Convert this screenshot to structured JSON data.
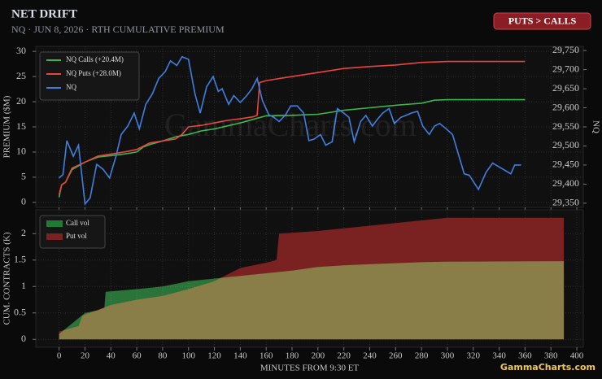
{
  "header": {
    "title": "NET DRIFT",
    "subtitle": "NQ · JUN 8, 2026 · RTH CUMULATIVE PREMIUM",
    "badge": "PUTS > CALLS"
  },
  "watermark": "GammaCharts.com",
  "logo": "GammaCharts.com",
  "chart_data": [
    {
      "type": "line",
      "ylabel": "PREMIUM ($M)",
      "y2label": "NQ",
      "legend": "upper left",
      "grid": true,
      "xlim": [
        -18,
        405
      ],
      "xticks": [
        0,
        20,
        40,
        60,
        80,
        100,
        120,
        140,
        160,
        180,
        200,
        220,
        240,
        260,
        280,
        300,
        320,
        340,
        360,
        380,
        400
      ],
      "ylim": [
        -1,
        31
      ],
      "yticks": [
        0,
        5,
        10,
        15,
        20,
        25,
        30
      ],
      "y2lim": [
        29339,
        29761
      ],
      "y2ticks": [
        {
          "value": 29350,
          "label": "29,350"
        },
        {
          "value": 29400,
          "label": "29,400"
        },
        {
          "value": 29450,
          "label": "29,450"
        },
        {
          "value": 29500,
          "label": "29,500"
        },
        {
          "value": 29550,
          "label": "29,550"
        },
        {
          "value": 29600,
          "label": "29,600"
        },
        {
          "value": 29650,
          "label": "29,650"
        },
        {
          "value": 29700,
          "label": "29,700"
        },
        {
          "value": 29750,
          "label": "29,750"
        }
      ],
      "series": [
        {
          "name": "NQ Calls (+20.4M)",
          "color": "#3cb54a",
          "x": [
            0,
            2,
            5,
            10,
            20,
            30,
            40,
            50,
            60,
            65,
            70,
            80,
            90,
            100,
            110,
            120,
            130,
            140,
            150,
            160,
            180,
            200,
            220,
            240,
            260,
            280,
            290,
            300,
            360
          ],
          "values": [
            1,
            3.5,
            4,
            6.5,
            8,
            9,
            9.3,
            9.6,
            10,
            11,
            11.5,
            12.2,
            13,
            13.5,
            14.2,
            14.6,
            15.2,
            15.8,
            16.5,
            17.2,
            17.3,
            17.5,
            18.3,
            18.8,
            19.3,
            19.7,
            20.3,
            20.4,
            20.4
          ]
        },
        {
          "name": "NQ Puts (+28.0M)",
          "color": "#e8453c",
          "x": [
            0,
            2,
            5,
            10,
            20,
            30,
            40,
            50,
            60,
            70,
            80,
            90,
            95,
            100,
            110,
            120,
            130,
            140,
            150,
            153,
            155,
            160,
            180,
            200,
            220,
            240,
            260,
            280,
            300,
            360
          ],
          "values": [
            1.5,
            3.5,
            4,
            6.8,
            8,
            9.2,
            9.6,
            10,
            10.5,
            11.8,
            12.2,
            12.6,
            13.5,
            15,
            15.3,
            15.8,
            16.3,
            16.6,
            17,
            17.3,
            23.8,
            24.2,
            25,
            25.8,
            26.6,
            27,
            27.3,
            27.8,
            28,
            28
          ]
        },
        {
          "name": "NQ",
          "color": "#3f7fe0",
          "axis": "y2",
          "x": [
            0,
            3,
            6,
            11,
            15,
            20,
            24,
            29,
            34,
            39,
            44,
            48,
            53,
            58,
            62,
            67,
            72,
            77,
            82,
            86,
            91,
            95,
            100,
            105,
            109,
            114,
            119,
            123,
            126,
            131,
            135,
            140,
            145,
            149,
            153,
            157,
            162,
            166,
            170,
            175,
            179,
            184,
            189,
            193,
            197,
            202,
            206,
            211,
            215,
            220,
            224,
            228,
            233,
            237,
            242,
            246,
            250,
            255,
            259,
            264,
            268,
            272,
            277,
            281,
            286,
            290,
            294,
            299,
            304,
            308,
            313,
            317,
            324,
            330,
            335,
            341,
            349,
            352,
            357
          ],
          "values": [
            29416,
            29425,
            29514,
            29473,
            29502,
            29348,
            29364,
            29452,
            29439,
            29416,
            29473,
            29530,
            29552,
            29586,
            29545,
            29609,
            29636,
            29677,
            29695,
            29723,
            29711,
            29734,
            29727,
            29636,
            29586,
            29655,
            29682,
            29643,
            29650,
            29609,
            29632,
            29614,
            29632,
            29650,
            29677,
            29620,
            29582,
            29575,
            29564,
            29582,
            29605,
            29605,
            29586,
            29514,
            29518,
            29530,
            29502,
            29511,
            29598,
            29586,
            29575,
            29511,
            29564,
            29580,
            29552,
            29570,
            29586,
            29598,
            29559,
            29575,
            29580,
            29586,
            29591,
            29552,
            29530,
            29552,
            29559,
            29545,
            29530,
            29484,
            29427,
            29423,
            29386,
            29432,
            29455,
            29443,
            29427,
            29450,
            29450
          ]
        }
      ]
    },
    {
      "type": "area",
      "ylabel": "CUM. CONTRACTS (K)",
      "xlabel": "MINUTES FROM 9:30 ET",
      "legend": "upper left",
      "grid": true,
      "xlim": [
        -18,
        405
      ],
      "xticks": [
        0,
        20,
        40,
        60,
        80,
        100,
        120,
        140,
        160,
        180,
        200,
        220,
        240,
        260,
        280,
        300,
        320,
        340,
        360,
        380,
        400
      ],
      "ylim": [
        -0.15,
        2.45
      ],
      "yticks": [
        0,
        0.5,
        1,
        1.5,
        2
      ],
      "series": [
        {
          "name": "Put vol",
          "color": "#7a2222",
          "x": [
            0,
            15,
            18,
            40,
            60,
            80,
            100,
            120,
            140,
            160,
            168,
            170,
            200,
            240,
            280,
            300,
            390
          ],
          "values": [
            0.15,
            0.25,
            0.45,
            0.65,
            0.75,
            0.82,
            0.95,
            1.1,
            1.35,
            1.45,
            1.5,
            2,
            2.05,
            2.15,
            2.25,
            2.3,
            2.3
          ]
        },
        {
          "name": "Call vol",
          "color": "#1c6a2c",
          "x": [
            0,
            10,
            20,
            30,
            35,
            36,
            60,
            80,
            100,
            120,
            140,
            160,
            180,
            200,
            220,
            240,
            260,
            280,
            300,
            390
          ],
          "values": [
            0.1,
            0.3,
            0.5,
            0.55,
            0.6,
            0.9,
            0.95,
            1,
            1.1,
            1.15,
            1.2,
            1.25,
            1.3,
            1.37,
            1.4,
            1.42,
            1.44,
            1.46,
            1.47,
            1.48
          ]
        }
      ]
    }
  ]
}
